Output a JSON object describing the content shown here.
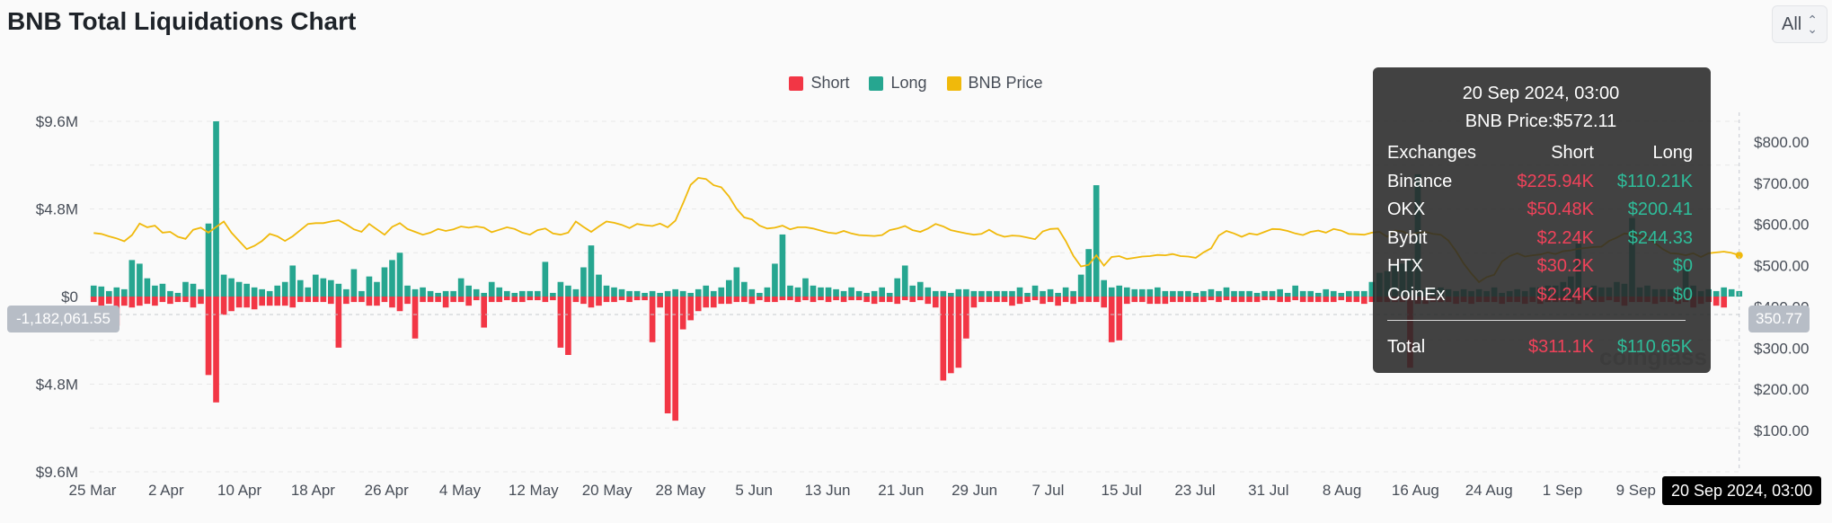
{
  "title": "BNB Total Liquidations Chart",
  "range_select": {
    "value": "All"
  },
  "legend": [
    {
      "label": "Short",
      "color": "#f23645"
    },
    {
      "label": "Long",
      "color": "#26a690"
    },
    {
      "label": "BNB Price",
      "color": "#f0b90b"
    }
  ],
  "crosshair": {
    "left_value": "-1,182,061.55",
    "right_value": "350.77",
    "date": "20 Sep 2024, 03:00"
  },
  "tooltip": {
    "date": "20 Sep 2024, 03:00",
    "price_label": "BNB Price:$572.11",
    "header": {
      "exchange": "Exchanges",
      "short": "Short",
      "long": "Long"
    },
    "rows": [
      {
        "exchange": "Binance",
        "short": "$225.94K",
        "long": "$110.21K"
      },
      {
        "exchange": "OKX",
        "short": "$50.48K",
        "long": "$200.41"
      },
      {
        "exchange": "Bybit",
        "short": "$2.24K",
        "long": "$244.33"
      },
      {
        "exchange": "HTX",
        "short": "$30.2K",
        "long": "$0"
      },
      {
        "exchange": "CoinEx",
        "short": "$2.24K",
        "long": "$0"
      }
    ],
    "total": {
      "label": "Total",
      "short": "$311.1K",
      "long": "$110.65K"
    }
  },
  "watermark": "coinglass",
  "chart_data": {
    "type": "bar",
    "title": "BNB Total Liquidations Chart",
    "left_axis": {
      "ticks": [
        "$9.6M",
        "$4.8M",
        "$0",
        "$4.8M",
        "$9.6M"
      ],
      "range": [
        -9600000,
        9600000
      ]
    },
    "right_axis": {
      "ticks": [
        "$800.00",
        "$700.00",
        "$600.00",
        "$500.00",
        "$400.00",
        "$300.00",
        "$200.00",
        "$100.00"
      ],
      "range": [
        0,
        850
      ]
    },
    "x_ticks": [
      "25 Mar",
      "2 Apr",
      "10 Apr",
      "18 Apr",
      "26 Apr",
      "4 May",
      "12 May",
      "20 May",
      "28 May",
      "5 Jun",
      "13 Jun",
      "21 Jun",
      "29 Jun",
      "7 Jul",
      "15 Jul",
      "23 Jul",
      "31 Jul",
      "8 Aug",
      "16 Aug",
      "24 Aug",
      "1 Sep",
      "9 Sep"
    ],
    "x_start": "2024-03-25",
    "grid": true,
    "legend_position": "top-center",
    "series": [
      {
        "name": "Long",
        "color": "#26a690",
        "values": [
          0.6,
          0.55,
          0.3,
          0.5,
          0.4,
          2.0,
          1.8,
          1.0,
          0.6,
          0.7,
          0.3,
          0.2,
          0.8,
          0.7,
          0.4,
          4.0,
          9.6,
          1.2,
          1.0,
          0.8,
          0.7,
          0.5,
          0.4,
          0.3,
          0.6,
          0.8,
          1.7,
          0.9,
          0.5,
          1.2,
          1.0,
          0.9,
          0.7,
          0.4,
          1.5,
          0.3,
          1.1,
          0.8,
          1.6,
          2.0,
          2.4,
          0.6,
          0.4,
          0.5,
          0.3,
          0.2,
          0.3,
          0.3,
          1.0,
          0.6,
          0.4,
          0.2,
          0.8,
          0.5,
          0.3,
          0.2,
          0.3,
          0.3,
          0.3,
          1.9,
          0.2,
          0.8,
          0.6,
          0.4,
          1.6,
          2.8,
          1.2,
          0.6,
          0.5,
          0.4,
          0.3,
          0.3,
          0.2,
          0.3,
          0.2,
          0.3,
          0.4,
          0.3,
          0.2,
          0.4,
          0.6,
          0.3,
          0.5,
          0.9,
          1.6,
          0.8,
          0.4,
          0.2,
          0.5,
          1.8,
          3.4,
          0.6,
          0.5,
          1.0,
          0.6,
          0.5,
          0.5,
          0.4,
          0.3,
          0.5,
          0.3,
          0.2,
          0.3,
          0.5,
          0.2,
          1.0,
          1.7,
          0.6,
          0.8,
          0.5,
          0.3,
          0.3,
          0.2,
          0.4,
          0.4,
          0.3,
          0.3,
          0.3,
          0.3,
          0.3,
          0.3,
          0.5,
          0.2,
          0.6,
          0.3,
          0.4,
          0.2,
          0.5,
          0.3,
          1.2,
          2.6,
          6.1,
          0.9,
          0.5,
          0.6,
          0.5,
          0.4,
          0.4,
          0.4,
          0.5,
          0.3,
          0.3,
          0.3,
          0.3,
          0.2,
          0.3,
          0.4,
          0.3,
          0.5,
          0.3,
          0.3,
          0.3,
          0.2,
          0.3,
          0.3,
          0.4,
          0.2,
          0.6,
          0.3,
          0.3,
          0.2,
          0.4,
          0.3,
          0.2,
          0.3,
          0.3,
          0.3,
          0.8,
          1.3,
          1.4,
          1.7,
          1.8,
          2.0,
          6.7,
          0.4,
          0.5,
          0.5,
          0.4,
          0.3,
          0.4,
          0.3,
          0.4,
          0.3,
          0.5,
          0.2,
          0.3,
          0.4,
          0.3,
          0.5,
          0.5,
          0.6,
          0.6,
          0.8,
          1.1,
          2.9,
          0.5,
          0.6,
          0.5,
          0.5,
          0.8,
          0.7,
          4.3,
          0.5,
          0.6,
          0.4,
          0.4,
          0.4,
          0.3,
          1.6,
          0.6,
          0.3,
          0.4,
          0.3,
          0.5,
          0.4,
          0.3
        ]
      },
      {
        "name": "Short",
        "color": "#f23645",
        "values": [
          0.3,
          0.8,
          0.4,
          1.6,
          0.5,
          0.6,
          0.5,
          0.4,
          0.5,
          0.3,
          0.4,
          0.3,
          0.3,
          0.6,
          0.4,
          4.3,
          5.8,
          1.0,
          0.8,
          0.6,
          0.6,
          0.7,
          0.5,
          0.5,
          0.5,
          0.5,
          0.6,
          0.3,
          0.3,
          0.3,
          0.3,
          0.4,
          2.8,
          0.4,
          0.3,
          0.3,
          0.5,
          0.5,
          0.3,
          0.6,
          0.8,
          0.4,
          2.3,
          0.3,
          0.3,
          0.3,
          0.6,
          0.3,
          0.3,
          0.5,
          0.2,
          1.7,
          0.3,
          0.3,
          0.2,
          0.3,
          0.3,
          0.2,
          0.2,
          0.3,
          0.2,
          2.8,
          3.2,
          0.3,
          0.4,
          0.6,
          0.5,
          0.3,
          0.3,
          0.2,
          0.3,
          0.2,
          0.2,
          2.5,
          0.6,
          6.4,
          6.8,
          1.8,
          1.3,
          0.8,
          0.6,
          0.6,
          0.4,
          0.4,
          0.3,
          0.3,
          0.4,
          0.2,
          0.3,
          0.3,
          0.2,
          0.2,
          0.3,
          0.2,
          0.3,
          0.2,
          0.3,
          0.2,
          0.3,
          0.2,
          0.2,
          0.3,
          0.4,
          0.3,
          0.3,
          0.4,
          0.2,
          0.3,
          0.2,
          0.4,
          0.6,
          4.6,
          4.2,
          3.9,
          2.3,
          0.6,
          0.3,
          0.3,
          0.3,
          0.3,
          0.5,
          0.4,
          0.3,
          0.2,
          0.4,
          0.3,
          0.5,
          0.3,
          0.4,
          0.3,
          0.3,
          0.3,
          0.6,
          2.5,
          2.4,
          0.4,
          0.3,
          0.3,
          0.4,
          0.4,
          0.4,
          0.3,
          0.3,
          0.3,
          0.3,
          0.3,
          0.2,
          0.3,
          0.2,
          0.3,
          0.3,
          0.3,
          0.3,
          0.2,
          0.2,
          0.3,
          0.3,
          0.2,
          0.3,
          0.3,
          0.3,
          0.3,
          0.3,
          0.2,
          0.3,
          0.3,
          0.4,
          0.3,
          0.3,
          0.3,
          0.3,
          0.3,
          3.9,
          0.4,
          0.4,
          0.3,
          0.3,
          0.3,
          0.4,
          0.3,
          0.4,
          0.3,
          0.3,
          0.3,
          0.4,
          0.3,
          0.3,
          0.4,
          0.3,
          0.4,
          0.3,
          0.3,
          0.3,
          0.3,
          0.4,
          0.2,
          0.3,
          0.3,
          0.2,
          0.3,
          0.5,
          0.3,
          0.3,
          0.3,
          0.4,
          0.3,
          0.3,
          0.4,
          0.3,
          0.6,
          0.4,
          0.3,
          0.5,
          0.6
        ]
      },
      {
        "name": "BNB Price",
        "color": "#f0b90b",
        "values": [
          579,
          577,
          571,
          566,
          559,
          574,
          602,
          593,
          597,
          580,
          582,
          570,
          565,
          587,
          592,
          580,
          594,
          607,
          580,
          560,
          540,
          548,
          560,
          577,
          571,
          560,
          571,
          586,
          601,
          603,
          603,
          607,
          610,
          600,
          588,
          582,
          601,
          588,
          575,
          594,
          603,
          589,
          582,
          575,
          580,
          589,
          584,
          588,
          595,
          592,
          595,
          592,
          581,
          587,
          593,
          589,
          580,
          575,
          586,
          590,
          578,
          575,
          580,
          607,
          594,
          582,
          595,
          607,
          604,
          599,
          591,
          601,
          598,
          596,
          602,
          593,
          609,
          651,
          696,
          713,
          710,
          695,
          690,
          668,
          638,
          617,
          612,
          597,
          590,
          592,
          597,
          588,
          593,
          593,
          590,
          585,
          580,
          578,
          584,
          578,
          574,
          573,
          572,
          574,
          586,
          590,
          596,
          586,
          582,
          590,
          601,
          595,
          586,
          582,
          578,
          575,
          577,
          587,
          576,
          570,
          573,
          572,
          568,
          564,
          583,
          589,
          590,
          560,
          524,
          498,
          502,
          525,
          500,
          521,
          523,
          516,
          519,
          522,
          523,
          526,
          525,
          528,
          523,
          522,
          519,
          532,
          542,
          573,
          584,
          578,
          570,
          578,
          575,
          582,
          589,
          588,
          584,
          578,
          574,
          582,
          585,
          580,
          589,
          585,
          577,
          576,
          575,
          580,
          582,
          570,
          585,
          583,
          574,
          580,
          582,
          577,
          575,
          561,
          535,
          505,
          481,
          460,
          472,
          478,
          510,
          523,
          530,
          522,
          525,
          527,
          532,
          528,
          535,
          537,
          541,
          543,
          545,
          546,
          560,
          568,
          578,
          576,
          573,
          568,
          555,
          540,
          530,
          529,
          525,
          530,
          521,
          530,
          532,
          534,
          531,
          525,
          536,
          538,
          545,
          551,
          556,
          560,
          570,
          572
        ]
      }
    ]
  }
}
